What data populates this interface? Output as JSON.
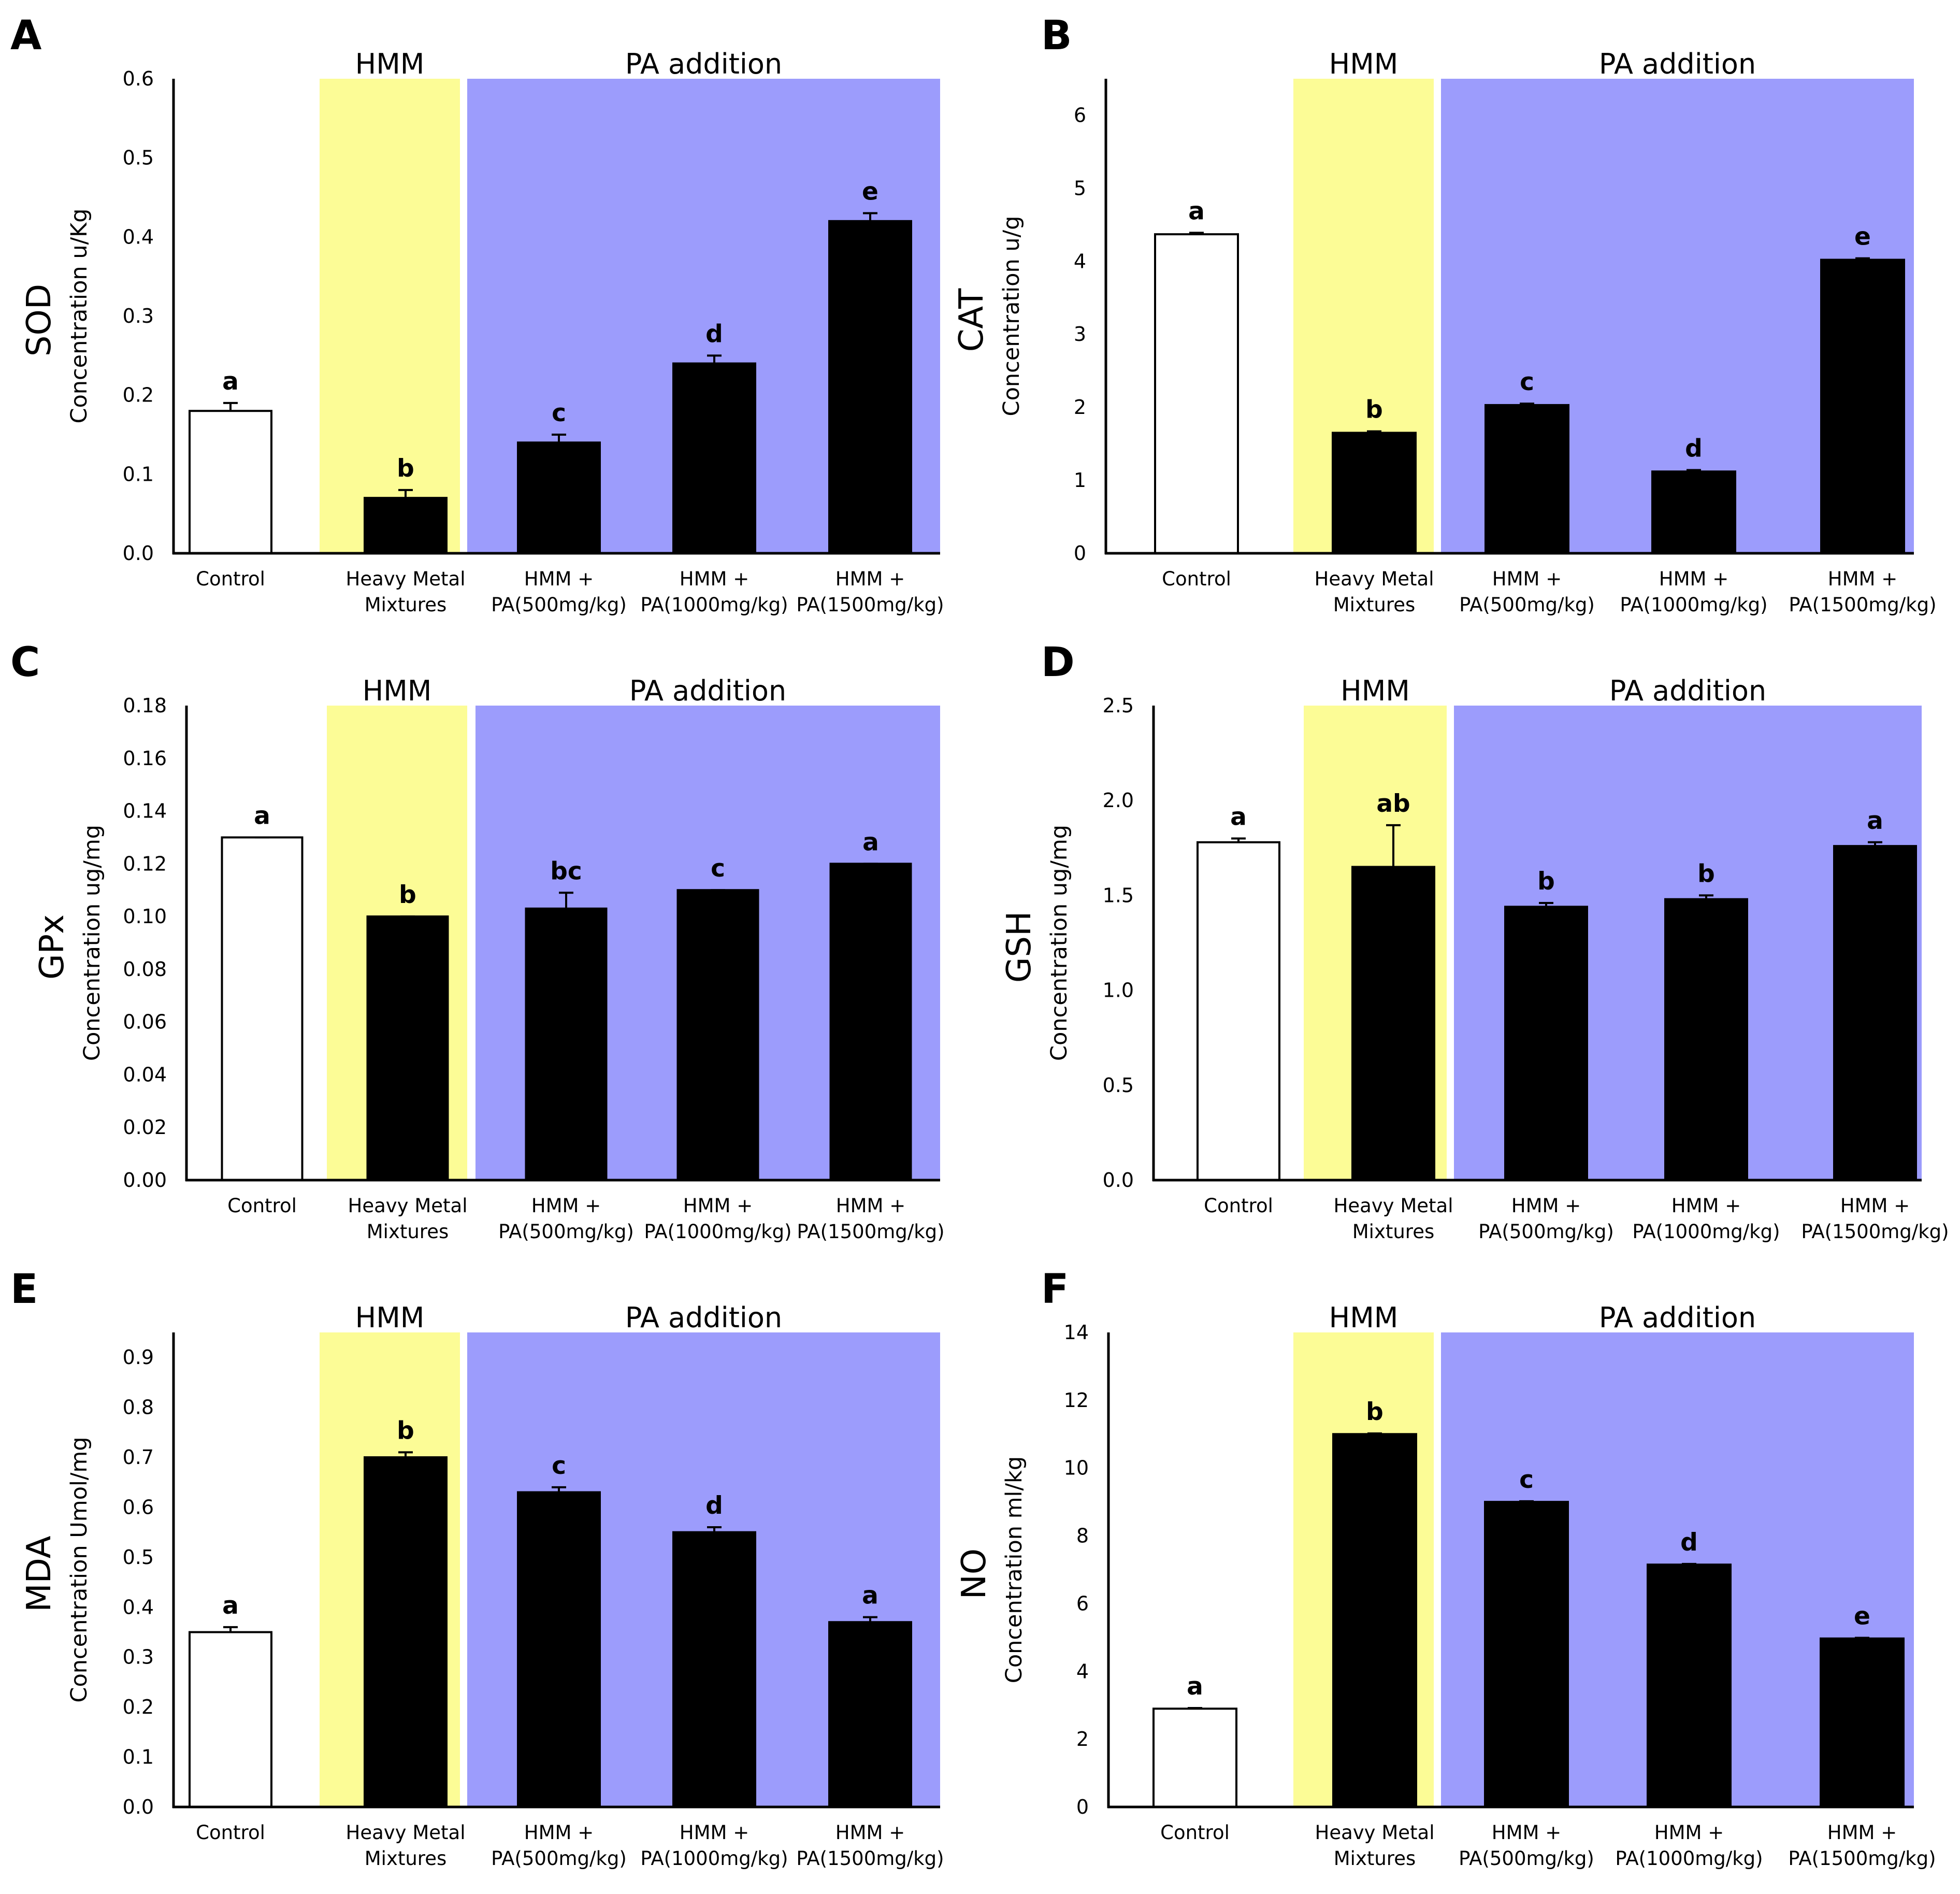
{
  "figure": {
    "colors": {
      "hmm_band": "#FCFC96",
      "pa_band": "#9C9CFC",
      "control_bar": "#FFFFFF",
      "treatment_bar": "#000000",
      "axis": "#000000"
    },
    "region_labels": {
      "hmm": "HMM",
      "pa": "PA addition"
    }
  },
  "chart_data": [
    {
      "panel": "A",
      "type": "bar",
      "parameter": "SOD",
      "ylabel": "Concentration u/Kg",
      "categories": [
        [
          "Control"
        ],
        [
          "Heavy Metal",
          "Mixtures"
        ],
        [
          "HMM +",
          "PA(500mg/kg)"
        ],
        [
          "HMM +",
          "PA(1000mg/kg)"
        ],
        [
          "HMM +",
          "PA(1500mg/kg)"
        ]
      ],
      "values": [
        0.18,
        0.07,
        0.14,
        0.24,
        0.42
      ],
      "errors": [
        0.01,
        0.01,
        0.01,
        0.01,
        0.01
      ],
      "significance": [
        "a",
        "b",
        "c",
        "d",
        "e"
      ],
      "ylim": [
        0,
        0.6
      ],
      "yticks": [
        0,
        0.1,
        0.2,
        0.3,
        0.4,
        0.5,
        0.6
      ],
      "ytick_labels": [
        "0.0",
        "0.1",
        "0.2",
        "0.3",
        "0.4",
        "0.5",
        "0.6"
      ]
    },
    {
      "panel": "B",
      "type": "bar",
      "parameter": "CAT",
      "ylabel": "Concentration u/g",
      "categories": [
        [
          "Control"
        ],
        [
          "Heavy Metal",
          "Mixtures"
        ],
        [
          "HMM +",
          "PA(500mg/kg)"
        ],
        [
          "HMM +",
          "PA(1000mg/kg)"
        ],
        [
          "HMM +",
          "PA(1500mg/kg)"
        ]
      ],
      "values": [
        4.37,
        1.65,
        2.03,
        1.12,
        4.02
      ],
      "errors": [
        0.02,
        0.02,
        0.02,
        0.02,
        0.02
      ],
      "significance": [
        "a",
        "b",
        "c",
        "d",
        "e"
      ],
      "ylim": [
        0,
        6.5
      ],
      "yticks": [
        0,
        1,
        2,
        3,
        4,
        5,
        6
      ],
      "ytick_labels": [
        "0",
        "1",
        "2",
        "3",
        "4",
        "5",
        "6"
      ]
    },
    {
      "panel": "C",
      "type": "bar",
      "parameter": "GPx",
      "ylabel": "Concentration ug/mg",
      "categories": [
        [
          "Control"
        ],
        [
          "Heavy Metal",
          "Mixtures"
        ],
        [
          "HMM +",
          "PA(500mg/kg)"
        ],
        [
          "HMM +",
          "PA(1000mg/kg)"
        ],
        [
          "HMM +",
          "PA(1500mg/kg)"
        ]
      ],
      "values": [
        0.13,
        0.1,
        0.103,
        0.11,
        0.12
      ],
      "errors": [
        0,
        0,
        0.006,
        0,
        0
      ],
      "significance": [
        "a",
        "b",
        "bc",
        "c",
        "a"
      ],
      "ylim": [
        0,
        0.18
      ],
      "yticks": [
        0,
        0.02,
        0.04,
        0.06,
        0.08,
        0.1,
        0.12,
        0.14,
        0.16,
        0.18
      ],
      "ytick_labels": [
        "0.00",
        "0.02",
        "0.04",
        "0.06",
        "0.08",
        "0.10",
        "0.12",
        "0.14",
        "0.16",
        "0.18"
      ]
    },
    {
      "panel": "D",
      "type": "bar",
      "parameter": "GSH",
      "ylabel": "Concentration ug/mg",
      "categories": [
        [
          "Control"
        ],
        [
          "Heavy Metal",
          "Mixtures"
        ],
        [
          "HMM +",
          "PA(500mg/kg)"
        ],
        [
          "HMM +",
          "PA(1000mg/kg)"
        ],
        [
          "HMM +",
          "PA(1500mg/kg)"
        ]
      ],
      "values": [
        1.78,
        1.65,
        1.44,
        1.48,
        1.76
      ],
      "errors": [
        0.02,
        0.22,
        0.02,
        0.02,
        0.02
      ],
      "significance": [
        "a",
        "ab",
        "b",
        "b",
        "a"
      ],
      "ylim": [
        0,
        2.5
      ],
      "yticks": [
        0,
        0.5,
        1,
        1.5,
        2,
        2.5
      ],
      "ytick_labels": [
        "0.0",
        "0.5",
        "1.0",
        "1.5",
        "2.0",
        "2.5"
      ]
    },
    {
      "panel": "E",
      "type": "bar",
      "parameter": "MDA",
      "ylabel": "Concentration Umol/mg",
      "categories": [
        [
          "Control"
        ],
        [
          "Heavy Metal",
          "Mixtures"
        ],
        [
          "HMM +",
          "PA(500mg/kg)"
        ],
        [
          "HMM +",
          "PA(1000mg/kg)"
        ],
        [
          "HMM +",
          "PA(1500mg/kg)"
        ]
      ],
      "values": [
        0.35,
        0.7,
        0.63,
        0.55,
        0.37
      ],
      "errors": [
        0.01,
        0.01,
        0.01,
        0.01,
        0.01
      ],
      "significance": [
        "a",
        "b",
        "c",
        "d",
        "a"
      ],
      "ylim": [
        0,
        0.95
      ],
      "yticks": [
        0,
        0.1,
        0.2,
        0.3,
        0.4,
        0.5,
        0.6,
        0.7,
        0.8,
        0.9
      ],
      "ytick_labels": [
        "0.0",
        "0.1",
        "0.2",
        "0.3",
        "0.4",
        "0.5",
        "0.6",
        "0.7",
        "0.8",
        "0.9"
      ]
    },
    {
      "panel": "F",
      "type": "bar",
      "parameter": "NO",
      "ylabel": "Concentration ml/kg",
      "categories": [
        [
          "Control"
        ],
        [
          "Heavy Metal",
          "Mixtures"
        ],
        [
          "HMM +",
          "PA(500mg/kg)"
        ],
        [
          "HMM +",
          "PA(1000mg/kg)"
        ],
        [
          "HMM +",
          "PA(1500mg/kg)"
        ]
      ],
      "values": [
        2.9,
        11.0,
        9.0,
        7.15,
        4.97
      ],
      "errors": [
        0.02,
        0.02,
        0.02,
        0.02,
        0.02
      ],
      "significance": [
        "a",
        "b",
        "c",
        "d",
        "e"
      ],
      "ylim": [
        0,
        14
      ],
      "yticks": [
        0,
        2,
        4,
        6,
        8,
        10,
        12,
        14
      ],
      "ytick_labels": [
        "0",
        "2",
        "4",
        "6",
        "8",
        "10",
        "12",
        "14"
      ]
    }
  ]
}
